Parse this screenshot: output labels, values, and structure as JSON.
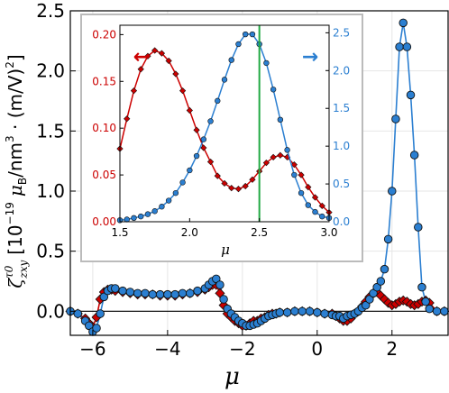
{
  "chart_data": [
    {
      "type": "line",
      "xlabel": "μ",
      "ylabel_parts": {
        "zeta": "ζ",
        "superscript": "τ0",
        "subscript": "zxy",
        "bracket": "[10",
        "exp": "−19",
        "units_a": "μ",
        "units_b": "B",
        "units_c": "/nm",
        "units_d": "3",
        "units_e": " · (m/V)",
        "units_f": "2",
        "close": "]"
      },
      "xlim": [
        -6.6,
        3.5
      ],
      "ylim": [
        -0.2,
        2.5
      ],
      "xticks": [
        -6,
        -4,
        -2,
        0,
        2
      ],
      "xtick_labels": [
        "−6",
        "−4",
        "−2",
        "0",
        "2"
      ],
      "yticks": [
        0.0,
        0.5,
        1.0,
        1.5,
        2.0,
        2.5
      ],
      "ytick_labels": [
        "0.0",
        "0.5",
        "1.0",
        "1.5",
        "2.0",
        "2.5"
      ],
      "grid": true,
      "zero_line": true,
      "colors": {
        "red": "#cc0000",
        "blue": "#2b7fd1",
        "marker_edge": "#111111",
        "axes": "#000000"
      },
      "series": [
        {
          "x": [
            -6.6,
            -6.4,
            -6.2,
            -6.1,
            -6.0,
            -5.9,
            -5.8,
            -5.7,
            -5.6,
            -5.5,
            -5.4,
            -5.2,
            -5.0,
            -4.8,
            -4.6,
            -4.4,
            -4.2,
            -4.0,
            -3.8,
            -3.6,
            -3.4,
            -3.2,
            -3.0,
            -2.9,
            -2.8,
            -2.7,
            -2.6,
            -2.5,
            -2.4,
            -2.3,
            -2.2,
            -2.1,
            -2.0,
            -1.9,
            -1.8,
            -1.7,
            -1.6,
            -1.5,
            -1.4,
            -1.3,
            -1.2,
            -1.1,
            -1.0,
            -0.8,
            -0.6,
            -0.4,
            -0.2,
            0.0,
            0.2,
            0.4,
            0.5,
            0.6,
            0.7,
            0.8,
            0.9,
            1.0,
            1.1,
            1.2,
            1.3,
            1.4,
            1.5,
            1.6,
            1.7,
            1.8,
            1.9,
            2.0,
            2.1,
            2.2,
            2.3,
            2.4,
            2.5,
            2.6,
            2.7,
            2.8,
            2.9,
            3.0,
            3.2,
            3.4
          ],
          "values": [
            0.0,
            -0.02,
            -0.06,
            -0.1,
            -0.13,
            -0.05,
            0.1,
            0.16,
            0.18,
            0.18,
            0.17,
            0.16,
            0.15,
            0.14,
            0.14,
            0.14,
            0.13,
            0.13,
            0.13,
            0.14,
            0.15,
            0.16,
            0.18,
            0.2,
            0.22,
            0.22,
            0.15,
            0.05,
            -0.02,
            -0.05,
            -0.08,
            -0.1,
            -0.12,
            -0.12,
            -0.1,
            -0.08,
            -0.08,
            -0.06,
            -0.05,
            -0.03,
            -0.02,
            -0.02,
            -0.01,
            -0.01,
            0.0,
            0.0,
            0.0,
            -0.01,
            -0.02,
            -0.02,
            -0.04,
            -0.06,
            -0.08,
            -0.08,
            -0.06,
            -0.02,
            0.0,
            0.04,
            0.08,
            0.12,
            0.15,
            0.16,
            0.13,
            0.1,
            0.07,
            0.05,
            0.06,
            0.08,
            0.09,
            0.08,
            0.06,
            0.05,
            0.06,
            0.08,
            0.09,
            0.07,
            0.0,
            0.0
          ],
          "color": "#cc0000",
          "marker": "diamond"
        },
        {
          "x": [
            -6.6,
            -6.4,
            -6.2,
            -6.1,
            -6.0,
            -5.9,
            -5.8,
            -5.7,
            -5.6,
            -5.5,
            -5.4,
            -5.2,
            -5.0,
            -4.8,
            -4.6,
            -4.4,
            -4.2,
            -4.0,
            -3.8,
            -3.6,
            -3.4,
            -3.2,
            -3.0,
            -2.9,
            -2.8,
            -2.7,
            -2.6,
            -2.5,
            -2.4,
            -2.3,
            -2.2,
            -2.1,
            -2.0,
            -1.9,
            -1.8,
            -1.7,
            -1.6,
            -1.5,
            -1.4,
            -1.3,
            -1.2,
            -1.1,
            -1.0,
            -0.8,
            -0.6,
            -0.4,
            -0.2,
            0.0,
            0.2,
            0.4,
            0.5,
            0.6,
            0.7,
            0.8,
            0.9,
            1.0,
            1.1,
            1.2,
            1.3,
            1.4,
            1.5,
            1.6,
            1.7,
            1.8,
            1.9,
            2.0,
            2.1,
            2.2,
            2.3,
            2.4,
            2.5,
            2.6,
            2.7,
            2.8,
            2.9,
            3.0,
            3.2,
            3.4
          ],
          "values": [
            0.0,
            -0.02,
            -0.08,
            -0.12,
            -0.17,
            -0.14,
            -0.02,
            0.12,
            0.17,
            0.19,
            0.19,
            0.17,
            0.16,
            0.15,
            0.15,
            0.14,
            0.14,
            0.14,
            0.14,
            0.15,
            0.15,
            0.17,
            0.19,
            0.22,
            0.25,
            0.27,
            0.22,
            0.1,
            0.02,
            -0.02,
            -0.05,
            -0.08,
            -0.1,
            -0.12,
            -0.12,
            -0.11,
            -0.1,
            -0.08,
            -0.06,
            -0.04,
            -0.03,
            -0.02,
            -0.01,
            -0.01,
            0.0,
            0.0,
            0.0,
            -0.01,
            -0.02,
            -0.03,
            -0.04,
            -0.04,
            -0.06,
            -0.04,
            -0.03,
            -0.02,
            0.0,
            0.03,
            0.05,
            0.1,
            0.15,
            0.2,
            0.25,
            0.35,
            0.6,
            1.0,
            1.6,
            2.2,
            2.4,
            2.2,
            1.8,
            1.3,
            0.7,
            0.2,
            0.08,
            0.02,
            0.0,
            0.0
          ],
          "color": "#2b7fd1",
          "marker": "circle"
        }
      ]
    },
    {
      "type": "line",
      "xlabel": "μ",
      "xlim": [
        1.5,
        3.0
      ],
      "xticks": [
        1.5,
        2.0,
        2.5,
        3.0
      ],
      "xtick_labels": [
        "1.5",
        "2.0",
        "2.5",
        "3.0"
      ],
      "ylim_left": [
        0.0,
        0.21
      ],
      "yticks_left": [
        0.0,
        0.05,
        0.1,
        0.15,
        0.2
      ],
      "ytick_labels_left": [
        "0.00",
        "0.05",
        "0.10",
        "0.15",
        "0.20"
      ],
      "ylim_right": [
        0.0,
        2.6
      ],
      "yticks_right": [
        0.0,
        0.5,
        1.0,
        1.5,
        2.0,
        2.5
      ],
      "ytick_labels_right": [
        "0.0",
        "0.5",
        "1.0",
        "1.5",
        "2.0",
        "2.5"
      ],
      "vline_x": 2.5,
      "vline_color": "#22aa44",
      "arrows": {
        "left": "←",
        "right": "→"
      },
      "series": [
        {
          "axis": "left",
          "color": "#cc0000",
          "marker": "diamond",
          "x": [
            1.5,
            1.55,
            1.6,
            1.65,
            1.7,
            1.75,
            1.8,
            1.85,
            1.9,
            1.95,
            2.0,
            2.05,
            2.1,
            2.15,
            2.2,
            2.25,
            2.3,
            2.35,
            2.4,
            2.45,
            2.5,
            2.55,
            2.6,
            2.65,
            2.7,
            2.75,
            2.8,
            2.85,
            2.9,
            2.95,
            3.0
          ],
          "values": [
            0.078,
            0.11,
            0.14,
            0.163,
            0.177,
            0.183,
            0.18,
            0.172,
            0.158,
            0.14,
            0.119,
            0.098,
            0.079,
            0.064,
            0.049,
            0.041,
            0.036,
            0.035,
            0.038,
            0.045,
            0.054,
            0.063,
            0.069,
            0.071,
            0.069,
            0.061,
            0.05,
            0.037,
            0.026,
            0.017,
            0.01
          ]
        },
        {
          "axis": "right",
          "color": "#2b7fd1",
          "marker": "circle",
          "x": [
            1.5,
            1.55,
            1.6,
            1.65,
            1.7,
            1.75,
            1.8,
            1.85,
            1.9,
            1.95,
            2.0,
            2.05,
            2.1,
            2.15,
            2.2,
            2.25,
            2.3,
            2.35,
            2.4,
            2.45,
            2.5,
            2.55,
            2.6,
            2.65,
            2.7,
            2.75,
            2.8,
            2.85,
            2.9,
            2.95,
            3.0
          ],
          "values": [
            0.02,
            0.03,
            0.05,
            0.07,
            0.1,
            0.14,
            0.2,
            0.28,
            0.38,
            0.52,
            0.68,
            0.87,
            1.09,
            1.33,
            1.6,
            1.88,
            2.14,
            2.35,
            2.48,
            2.48,
            2.35,
            2.1,
            1.75,
            1.35,
            0.95,
            0.62,
            0.38,
            0.22,
            0.13,
            0.07,
            0.05
          ]
        }
      ]
    }
  ]
}
